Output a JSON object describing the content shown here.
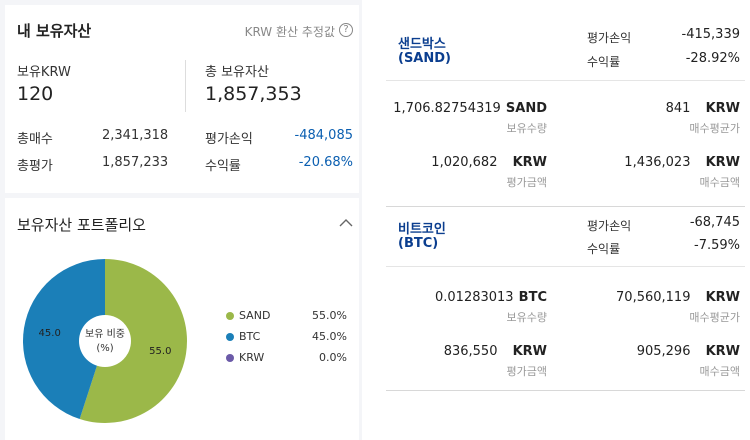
{
  "summary": {
    "title": "내 보유자산",
    "note": "KRW 환산 추정값",
    "help_icon": "?",
    "krw_label": "보유KRW",
    "krw_value": "120",
    "total_label": "총 보유자산",
    "total_value": "1,857,353",
    "buy_label": "총매수",
    "buy_value": "2,341,318",
    "eval_label": "총평가",
    "eval_value": "1,857,233",
    "pl_label": "평가손익",
    "pl_value": "-484,085",
    "rate_label": "수익률",
    "rate_value": "-20.68%"
  },
  "portfolio": {
    "title": "보유자산 포트폴리오",
    "collapse_icon": "chevron-up-icon",
    "center_label_1": "보유 비중",
    "center_label_2": "(%)",
    "legend": [
      {
        "name": "SAND",
        "pct": "55.0%",
        "color": "#9bb849"
      },
      {
        "name": "BTC",
        "pct": "45.0%",
        "color": "#1b7fb8"
      },
      {
        "name": "KRW",
        "pct": "0.0%",
        "color": "#6b5aa8"
      }
    ]
  },
  "chart_data": {
    "type": "pie",
    "categories": [
      "SAND",
      "BTC",
      "KRW"
    ],
    "values": [
      55.0,
      45.0,
      0.0
    ],
    "slice_labels": [
      "55.0",
      "45.0",
      ""
    ],
    "colors": [
      "#9bb849",
      "#1b7fb8",
      "#6b5aa8"
    ],
    "donut": true,
    "legend_position": "right"
  },
  "coins": [
    {
      "name_line1": "샌드박스",
      "name_line2": "(SAND)",
      "pl_label": "평가손익",
      "pl_value": "-415,339",
      "rate_label": "수익률",
      "rate_value": "-28.92%",
      "qty_num": "1,706.82754319",
      "qty_unit": "SAND",
      "qty_label": "보유수량",
      "avg_num": "841",
      "avg_unit": "KRW",
      "avg_label": "매수평균가",
      "eval_num": "1,020,682",
      "eval_unit": "KRW",
      "eval_label": "평가금액",
      "buy_num": "1,436,023",
      "buy_unit": "KRW",
      "buy_label": "매수금액"
    },
    {
      "name_line1": "비트코인",
      "name_line2": "(BTC)",
      "pl_label": "평가손익",
      "pl_value": "-68,745",
      "rate_label": "수익률",
      "rate_value": "-7.59%",
      "qty_num": "0.01283013",
      "qty_unit": "BTC",
      "qty_label": "보유수량",
      "avg_num": "70,560,119",
      "avg_unit": "KRW",
      "avg_label": "매수평균가",
      "eval_num": "836,550",
      "eval_unit": "KRW",
      "eval_label": "평가금액",
      "buy_num": "905,296",
      "buy_unit": "KRW",
      "buy_label": "매수금액"
    }
  ]
}
